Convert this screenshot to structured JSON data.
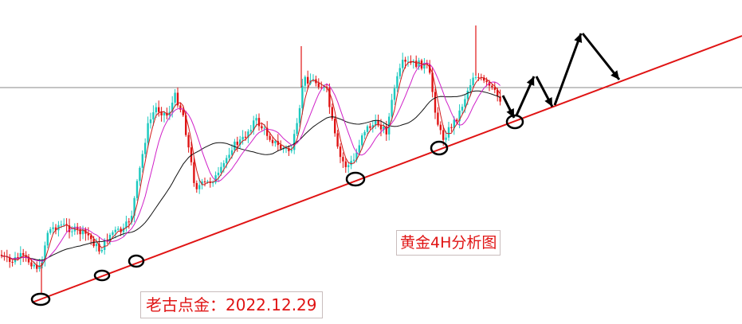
{
  "title": "黄金4H分析图",
  "author_tag": "老古点金：2022.12.29",
  "colors": {
    "up_candle": "#1bc9bf",
    "down_candle": "#e01414",
    "ma_fast": "#d01a1a",
    "ma_mid": "#d020c8",
    "ma_slow": "#111111",
    "trendline": "#e01414",
    "horizontal_line": "#8a8a8a",
    "forecast": "#000000"
  },
  "chart_data": {
    "type": "candlestick",
    "title": "黄金4H分析图",
    "xlabel": "",
    "ylabel": "",
    "grid": false,
    "note": "Gold 4H candlestick chart without price axis; shapes are reproduced relative to the drawn trendline and horizontal line.",
    "series": [
      {
        "role": "ma_fast",
        "color": "#d01a1a"
      },
      {
        "role": "ma_mid",
        "color": "#d020c8"
      },
      {
        "role": "ma_slow",
        "color": "#111111"
      }
    ],
    "annotations": {
      "rising_trendline": true,
      "horizontal_reference_line": true,
      "support_touches_circled": 6,
      "forecast_zigzag_arrows": 5
    }
  }
}
